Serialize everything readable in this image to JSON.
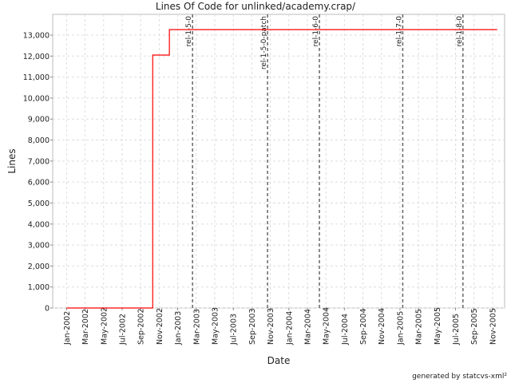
{
  "chart_data": {
    "type": "line",
    "title": "Lines Of Code for unlinked/academy.crap/",
    "xlabel": "Date",
    "ylabel": "Lines",
    "x_unit": "months since Jan-2002",
    "xlim": [
      -1.5,
      47.3
    ],
    "ylim": [
      0,
      14000
    ],
    "yticks": [
      0,
      1000,
      2000,
      3000,
      4000,
      5000,
      6000,
      7000,
      8000,
      9000,
      10000,
      11000,
      12000,
      13000
    ],
    "ytick_labels": [
      "0",
      "1,000",
      "2,000",
      "3,000",
      "4,000",
      "5,000",
      "6,000",
      "7,000",
      "8,000",
      "9,000",
      "10,000",
      "11,000",
      "12,000",
      "13,000"
    ],
    "xtick_labels": [
      "Jan-2002",
      "Mar-2002",
      "May-2002",
      "Jul-2002",
      "Sep-2002",
      "Nov-2002",
      "Jan-2003",
      "Mar-2003",
      "May-2003",
      "Jul-2003",
      "Sep-2003",
      "Nov-2003",
      "Jan-2004",
      "Mar-2004",
      "May-2004",
      "Jul-2004",
      "Sep-2004",
      "Nov-2004",
      "Jan-2005",
      "Mar-2005",
      "May-2005",
      "Jul-2005",
      "Sep-2005",
      "Nov-2005"
    ],
    "grid": true,
    "series": [
      {
        "name": "Lines",
        "color": "#ff0000",
        "step": true,
        "points": [
          [
            0,
            0
          ],
          [
            9.3,
            12050
          ],
          [
            11.1,
            13260
          ],
          [
            46.5,
            13260
          ]
        ]
      }
    ],
    "markers": [
      {
        "label": "rel-1-5-0",
        "x": 13.6
      },
      {
        "label": "rel-1-5-0-patch",
        "x": 21.7
      },
      {
        "label": "rel-1-6-0",
        "x": 27.3
      },
      {
        "label": "rel-1-7-0",
        "x": 36.3
      },
      {
        "label": "rel-1-8-0",
        "x": 42.8
      }
    ]
  },
  "footer": "generated by statcvs-xml²"
}
